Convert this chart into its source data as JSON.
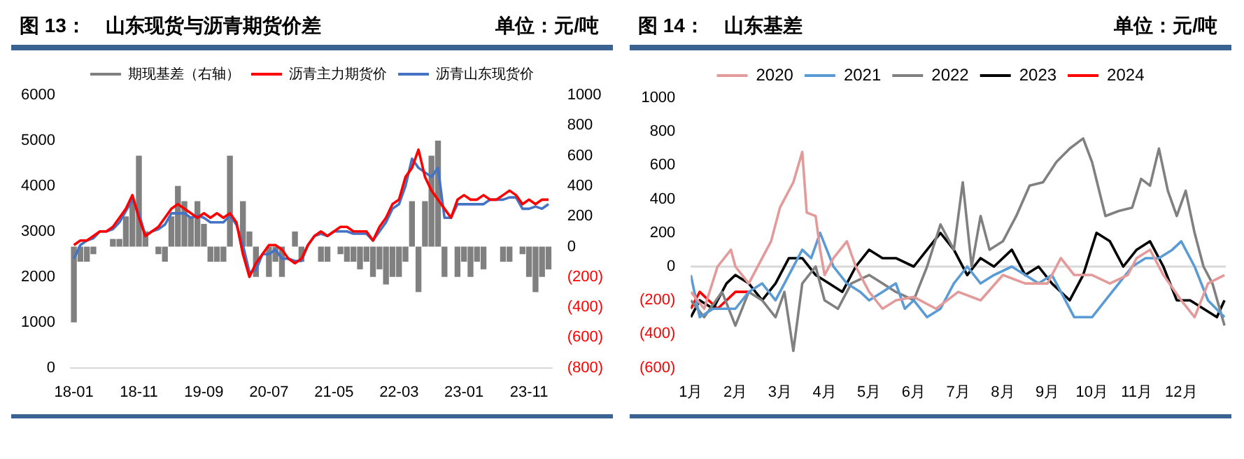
{
  "chart_data": [
    {
      "type": "line",
      "title": "图 13：　山东现货与沥青期货价差",
      "annotations": [
        "单位：元/吨"
      ],
      "categories": [
        "18-01",
        null,
        null,
        null,
        null,
        null,
        null,
        null,
        null,
        null,
        "18-11",
        null,
        null,
        null,
        null,
        null,
        null,
        null,
        null,
        null,
        "19-09",
        null,
        null,
        null,
        null,
        null,
        null,
        null,
        null,
        null,
        "20-07",
        null,
        null,
        null,
        null,
        null,
        null,
        null,
        null,
        null,
        "21-05",
        null,
        null,
        null,
        null,
        null,
        null,
        null,
        null,
        null,
        "22-03",
        null,
        null,
        null,
        null,
        null,
        null,
        null,
        null,
        null,
        "23-01",
        null,
        null,
        null,
        null,
        null,
        null,
        null,
        null,
        null,
        "23-11",
        null,
        null,
        null
      ],
      "series": [
        {
          "name": "期现基差（右轴）",
          "type": "bar",
          "axis": "y2",
          "color": "#808080",
          "values": [
            -500,
            -100,
            -100,
            -50,
            0,
            0,
            50,
            50,
            200,
            300,
            600,
            100,
            0,
            -50,
            -100,
            200,
            400,
            300,
            200,
            300,
            150,
            -100,
            -100,
            -100,
            600,
            0,
            300,
            100,
            -200,
            0,
            -200,
            -100,
            -200,
            0,
            100,
            -100,
            0,
            0,
            -100,
            -100,
            0,
            -50,
            -100,
            -100,
            -150,
            -100,
            -200,
            -150,
            -250,
            -200,
            -200,
            -100,
            300,
            -300,
            300,
            600,
            700,
            -200,
            0,
            -200,
            -100,
            -200,
            -100,
            -150,
            0,
            0,
            -100,
            -100,
            0,
            -50,
            -200,
            -300,
            -200,
            -150
          ]
        },
        {
          "name": "沥青主力期货价",
          "color": "#ff0000",
          "values": [
            2700,
            2800,
            2800,
            2900,
            3000,
            3000,
            3100,
            3300,
            3500,
            3800,
            3300,
            2900,
            3000,
            3100,
            3300,
            3500,
            3600,
            3500,
            3400,
            3300,
            3400,
            3300,
            3400,
            3300,
            3400,
            3200,
            2500,
            2000,
            2300,
            2500,
            2700,
            2700,
            2600,
            2400,
            2300,
            2400,
            2700,
            2900,
            3000,
            2900,
            3000,
            3100,
            3100,
            3000,
            3000,
            3000,
            2800,
            3100,
            3300,
            3600,
            3700,
            4200,
            4400,
            4800,
            4200,
            3900,
            3700,
            3500,
            3300,
            3700,
            3800,
            3700,
            3700,
            3800,
            3700,
            3700,
            3800,
            3900,
            3800,
            3600,
            3700,
            3600,
            3700,
            3700
          ]
        },
        {
          "name": "沥青山东现货价",
          "color": "#4472c4",
          "values": [
            2400,
            2700,
            2800,
            2850,
            3000,
            3000,
            3050,
            3200,
            3450,
            3700,
            3400,
            2900,
            3000,
            3050,
            3150,
            3400,
            3400,
            3400,
            3300,
            3350,
            3300,
            3200,
            3200,
            3200,
            3350,
            3150,
            2700,
            2100,
            2150,
            2500,
            2500,
            2600,
            2400,
            2400,
            2350,
            2350,
            2700,
            2900,
            2950,
            2900,
            3000,
            3000,
            3000,
            2950,
            2950,
            2950,
            2800,
            3000,
            3200,
            3500,
            3600,
            4000,
            4600,
            4400,
            4300,
            4200,
            4400,
            3300,
            3300,
            3600,
            3600,
            3600,
            3600,
            3600,
            3700,
            3700,
            3700,
            3750,
            3750,
            3500,
            3500,
            3550,
            3500,
            3600
          ]
        }
      ],
      "ylim": [
        0,
        6000
      ],
      "yticks": [
        0,
        1000,
        2000,
        3000,
        4000,
        5000,
        6000
      ],
      "y2lim": [
        -800,
        1000
      ],
      "y2ticks": [
        {
          "value": -800,
          "label": "(800)"
        },
        {
          "value": -600,
          "label": "(600)"
        },
        {
          "value": -400,
          "label": "(400)"
        },
        {
          "value": -200,
          "label": "(200)"
        },
        0,
        200,
        400,
        600,
        800,
        1000
      ],
      "legend": "top",
      "marker": "none",
      "grid": false
    },
    {
      "type": "line",
      "title": "图 14：　山东基差",
      "annotations": [
        "单位：元/吨"
      ],
      "xlim": [
        1,
        13
      ],
      "xticks": [
        {
          "value": 1,
          "label": "1月"
        },
        {
          "value": 2,
          "label": "2月"
        },
        {
          "value": 3,
          "label": "3月"
        },
        {
          "value": 4,
          "label": "4月"
        },
        {
          "value": 5,
          "label": "5月"
        },
        {
          "value": 6,
          "label": "6月"
        },
        {
          "value": 7,
          "label": "7月"
        },
        {
          "value": 8,
          "label": "8月"
        },
        {
          "value": 9,
          "label": "9月"
        },
        {
          "value": 10,
          "label": "10月"
        },
        {
          "value": 11,
          "label": "11月"
        },
        {
          "value": 12,
          "label": "12月"
        }
      ],
      "series": [
        {
          "name": "2020",
          "color": "#e39a9a",
          "x": [
            1,
            1.3,
            1.6,
            1.9,
            2,
            2.3,
            2.6,
            2.8,
            3,
            3.3,
            3.5,
            3.6,
            3.8,
            3.9,
            4,
            4.2,
            4.5,
            4.7,
            5,
            5.3,
            5.6,
            6,
            6.5,
            7,
            7.5,
            8,
            8.5,
            9,
            9.3,
            9.6,
            10,
            10.4,
            10.8,
            11,
            11.3,
            11.6,
            12,
            12.3,
            12.6,
            12.97
          ],
          "values": [
            -150,
            -250,
            0,
            100,
            0,
            -100,
            50,
            150,
            350,
            500,
            680,
            320,
            300,
            100,
            -50,
            50,
            150,
            0,
            -150,
            -250,
            -200,
            -180,
            -250,
            -150,
            -200,
            -50,
            -100,
            -100,
            50,
            -50,
            -50,
            -100,
            -50,
            50,
            100,
            -50,
            -200,
            -300,
            -100,
            -50
          ]
        },
        {
          "name": "2021",
          "color": "#5b9bd5",
          "x": [
            1,
            1.2,
            1.5,
            1.8,
            2,
            2.3,
            2.6,
            2.9,
            3.2,
            3.5,
            3.7,
            3.9,
            4.2,
            4.5,
            4.8,
            5,
            5.3,
            5.6,
            5.8,
            6,
            6.3,
            6.6,
            6.9,
            7.2,
            7.5,
            7.8,
            8.2,
            8.5,
            8.8,
            9.1,
            9.4,
            9.6,
            10,
            10.3,
            10.6,
            10.9,
            11.2,
            11.5,
            11.8,
            12,
            12.3,
            12.6,
            12.97
          ],
          "values": [
            -50,
            -300,
            -250,
            -250,
            -250,
            -150,
            -100,
            -200,
            -50,
            100,
            50,
            200,
            0,
            -100,
            -150,
            -200,
            -150,
            -100,
            -250,
            -200,
            -300,
            -250,
            -100,
            0,
            -100,
            -50,
            0,
            -50,
            -100,
            -50,
            -200,
            -300,
            -300,
            -200,
            -100,
            0,
            50,
            50,
            100,
            150,
            0,
            -200,
            -300
          ]
        },
        {
          "name": "2022",
          "color": "#808080",
          "x": [
            1,
            1.3,
            1.7,
            2,
            2.3,
            2.6,
            2.9,
            3.1,
            3.3,
            3.5,
            3.8,
            4,
            4.3,
            4.6,
            5,
            5.3,
            5.6,
            6,
            6.3,
            6.6,
            6.9,
            7.1,
            7.3,
            7.5,
            7.7,
            8,
            8.3,
            8.6,
            8.9,
            9.2,
            9.5,
            9.8,
            10,
            10.3,
            10.6,
            10.9,
            11.1,
            11.3,
            11.5,
            11.7,
            11.9,
            12.1,
            12.3,
            12.5,
            12.7,
            12.97
          ],
          "values": [
            -200,
            -300,
            -150,
            -350,
            -150,
            -200,
            -300,
            -150,
            -500,
            -100,
            0,
            -200,
            -250,
            -100,
            -50,
            -100,
            -150,
            -200,
            0,
            250,
            100,
            500,
            0,
            300,
            100,
            150,
            300,
            480,
            500,
            620,
            700,
            760,
            620,
            300,
            330,
            350,
            520,
            480,
            700,
            450,
            300,
            450,
            200,
            0,
            -100,
            -350
          ]
        },
        {
          "name": "2023",
          "color": "#000000",
          "x": [
            1,
            1.2,
            1.5,
            1.8,
            2,
            2.3,
            2.6,
            2.9,
            3.2,
            3.5,
            3.8,
            4.1,
            4.4,
            4.7,
            5,
            5.3,
            5.6,
            6,
            6.3,
            6.6,
            6.9,
            7.2,
            7.5,
            7.8,
            8.2,
            8.5,
            8.8,
            9.1,
            9.5,
            9.8,
            10.1,
            10.4,
            10.7,
            11,
            11.3,
            11.6,
            11.9,
            12.2,
            12.5,
            12.8,
            12.97
          ],
          "values": [
            -300,
            -200,
            -250,
            -100,
            -50,
            -100,
            -200,
            -100,
            50,
            50,
            -50,
            -100,
            -150,
            0,
            100,
            50,
            50,
            0,
            100,
            200,
            100,
            -50,
            50,
            0,
            100,
            -50,
            0,
            -100,
            -200,
            -50,
            200,
            150,
            0,
            100,
            150,
            0,
            -200,
            -200,
            -250,
            -300,
            -200
          ]
        },
        {
          "name": "2024",
          "color": "#ff0000",
          "x": [
            1,
            1.2,
            1.4,
            1.6,
            1.8,
            2,
            2.3
          ],
          "values": [
            -250,
            -150,
            -200,
            -250,
            -200,
            -150,
            -150
          ]
        }
      ],
      "ref_lines": [
        {
          "axis": "y",
          "value": 0,
          "color": "#d9d9d9"
        }
      ],
      "ylim": [
        -600,
        1000
      ],
      "yticks": [
        {
          "value": -600,
          "label": "(600)"
        },
        {
          "value": -400,
          "label": "(400)"
        },
        {
          "value": -200,
          "label": "(200)"
        },
        0,
        200,
        400,
        600,
        800,
        1000
      ],
      "legend": "top",
      "marker": "none",
      "grid": false
    }
  ]
}
